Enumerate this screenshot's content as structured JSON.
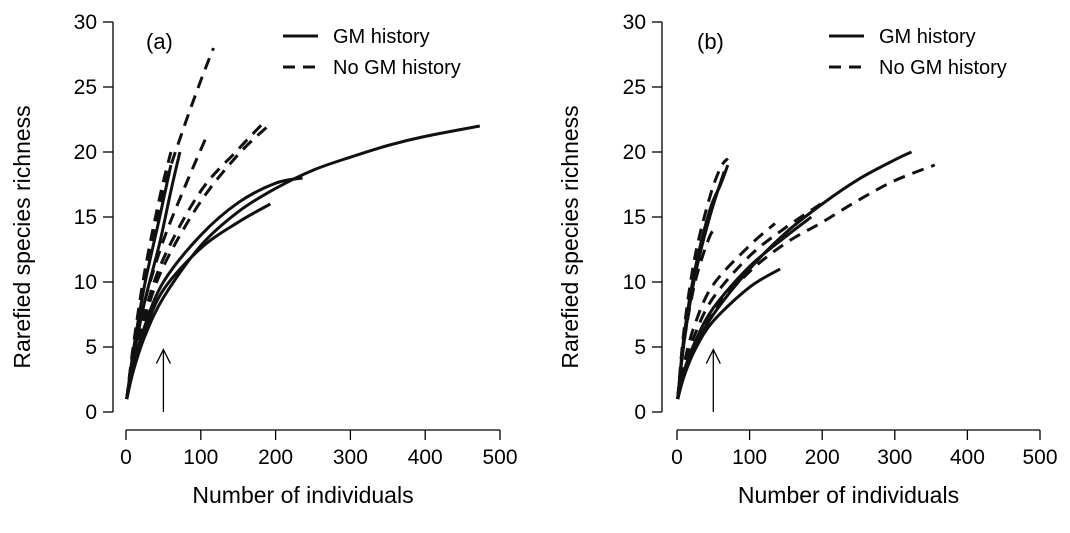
{
  "chart_data": [
    {
      "type": "line",
      "panel_label": "(a)",
      "xlabel": "Number of individuals",
      "ylabel": "Rarefied species richness",
      "xlim": [
        0,
        500
      ],
      "ylim": [
        0,
        30
      ],
      "xticks": [
        0,
        100,
        200,
        300,
        400,
        500
      ],
      "yticks": [
        0,
        5,
        10,
        15,
        20,
        25,
        30
      ],
      "legend": {
        "position": "top-right",
        "entries": [
          {
            "label": "GM history",
            "style": "solid"
          },
          {
            "label": "No GM history",
            "style": "dashed"
          }
        ]
      },
      "arrow_at_x": 50,
      "series": [
        {
          "group": "GM history",
          "style": "solid",
          "points": [
            [
              1,
              1
            ],
            [
              10,
              3.2
            ],
            [
              25,
              5.8
            ],
            [
              50,
              8.8
            ],
            [
              100,
              12.8
            ],
            [
              150,
              15.4
            ],
            [
              200,
              17.2
            ],
            [
              250,
              18.6
            ],
            [
              300,
              19.6
            ],
            [
              350,
              20.5
            ],
            [
              400,
              21.2
            ],
            [
              473,
              22
            ]
          ]
        },
        {
          "group": "GM history",
          "style": "solid",
          "points": [
            [
              1,
              1
            ],
            [
              10,
              3.6
            ],
            [
              25,
              6.6
            ],
            [
              50,
              10
            ],
            [
              100,
              13.6
            ],
            [
              150,
              16.1
            ],
            [
              200,
              17.6
            ],
            [
              236,
              18
            ]
          ]
        },
        {
          "group": "GM history",
          "style": "solid",
          "points": [
            [
              1,
              1
            ],
            [
              10,
              3.4
            ],
            [
              25,
              6.2
            ],
            [
              50,
              9.4
            ],
            [
              100,
              12.6
            ],
            [
              150,
              14.6
            ],
            [
              193,
              16
            ]
          ]
        },
        {
          "group": "GM history",
          "style": "solid",
          "points": [
            [
              1,
              1
            ],
            [
              10,
              4.2
            ],
            [
              25,
              8.5
            ],
            [
              45,
              13
            ],
            [
              60,
              17
            ],
            [
              72,
              20
            ]
          ]
        },
        {
          "group": "GM history",
          "style": "solid",
          "points": [
            [
              1,
              1
            ],
            [
              10,
              4.8
            ],
            [
              25,
              9.8
            ],
            [
              45,
              15
            ],
            [
              60,
              19
            ]
          ]
        },
        {
          "group": "No GM history",
          "style": "dashed",
          "points": [
            [
              1,
              1
            ],
            [
              10,
              5
            ],
            [
              25,
              10.5
            ],
            [
              50,
              17
            ],
            [
              75,
              21.5
            ],
            [
              100,
              25.5
            ],
            [
              117,
              28
            ]
          ]
        },
        {
          "group": "No GM history",
          "style": "dashed",
          "points": [
            [
              1,
              1
            ],
            [
              10,
              5.2
            ],
            [
              25,
              10.8
            ],
            [
              45,
              16.5
            ],
            [
              60,
              20
            ]
          ]
        },
        {
          "group": "No GM history",
          "style": "dashed",
          "points": [
            [
              1,
              1
            ],
            [
              10,
              4.5
            ],
            [
              25,
              8.5
            ],
            [
              50,
              13.2
            ],
            [
              80,
              17.5
            ],
            [
              110,
              21.5
            ]
          ]
        },
        {
          "group": "No GM history",
          "style": "dashed",
          "points": [
            [
              1,
              1
            ],
            [
              10,
              4.0
            ],
            [
              25,
              7.6
            ],
            [
              50,
              11.8
            ],
            [
              100,
              17
            ],
            [
              150,
              20.2
            ],
            [
              183,
              22.2
            ]
          ]
        },
        {
          "group": "No GM history",
          "style": "dashed",
          "points": [
            [
              1,
              1
            ],
            [
              10,
              3.8
            ],
            [
              25,
              7.2
            ],
            [
              50,
              11.2
            ],
            [
              100,
              16.2
            ],
            [
              150,
              19.8
            ],
            [
              190,
              22
            ]
          ]
        }
      ]
    },
    {
      "type": "line",
      "panel_label": "(b)",
      "xlabel": "Number of individuals",
      "ylabel": "Rarefied species richness",
      "xlim": [
        0,
        500
      ],
      "ylim": [
        0,
        30
      ],
      "xticks": [
        0,
        100,
        200,
        300,
        400,
        500
      ],
      "yticks": [
        0,
        5,
        10,
        15,
        20,
        25,
        30
      ],
      "legend": {
        "position": "top-right",
        "entries": [
          {
            "label": "GM history",
            "style": "solid"
          },
          {
            "label": "No GM history",
            "style": "dashed"
          }
        ]
      },
      "arrow_at_x": 50,
      "series": [
        {
          "group": "GM history",
          "style": "solid",
          "points": [
            [
              1,
              1
            ],
            [
              10,
              3
            ],
            [
              25,
              5
            ],
            [
              50,
              7.5
            ],
            [
              100,
              11
            ],
            [
              150,
              13.8
            ],
            [
              200,
              16
            ],
            [
              250,
              17.9
            ],
            [
              300,
              19.4
            ],
            [
              323,
              20
            ]
          ]
        },
        {
          "group": "GM history",
          "style": "solid",
          "points": [
            [
              1,
              1
            ],
            [
              10,
              2.8
            ],
            [
              25,
              4.8
            ],
            [
              50,
              7
            ],
            [
              100,
              9.6
            ],
            [
              142,
              11
            ]
          ]
        },
        {
          "group": "GM history",
          "style": "solid",
          "points": [
            [
              1,
              1
            ],
            [
              10,
              3.2
            ],
            [
              25,
              5.4
            ],
            [
              50,
              8
            ],
            [
              100,
              11.2
            ],
            [
              150,
              13.5
            ],
            [
              185,
              15
            ]
          ]
        },
        {
          "group": "GM history",
          "style": "solid",
          "points": [
            [
              1,
              1
            ],
            [
              10,
              6
            ],
            [
              25,
              11
            ],
            [
              45,
              15.5
            ],
            [
              60,
              17.5
            ],
            [
              70,
              19
            ]
          ]
        },
        {
          "group": "GM history",
          "style": "solid",
          "points": [
            [
              1,
              1
            ],
            [
              10,
              5.5
            ],
            [
              25,
              10.5
            ],
            [
              45,
              15
            ],
            [
              65,
              18.5
            ]
          ]
        },
        {
          "group": "No GM history",
          "style": "dashed",
          "points": [
            [
              1,
              1
            ],
            [
              10,
              3
            ],
            [
              25,
              5.2
            ],
            [
              50,
              7.8
            ],
            [
              100,
              10.8
            ],
            [
              150,
              13
            ],
            [
              200,
              14.6
            ],
            [
              250,
              16.3
            ],
            [
              300,
              17.8
            ],
            [
              355,
              19
            ]
          ]
        },
        {
          "group": "No GM history",
          "style": "dashed",
          "points": [
            [
              1,
              1
            ],
            [
              10,
              3.8
            ],
            [
              25,
              6.8
            ],
            [
              50,
              9.8
            ],
            [
              100,
              12.8
            ],
            [
              135,
              14.5
            ]
          ]
        },
        {
          "group": "No GM history",
          "style": "dashed",
          "points": [
            [
              1,
              1
            ],
            [
              10,
              3.4
            ],
            [
              25,
              6
            ],
            [
              50,
              8.8
            ],
            [
              100,
              12
            ],
            [
              150,
              14.2
            ],
            [
              198,
              16
            ]
          ]
        },
        {
          "group": "No GM history",
          "style": "dashed",
          "points": [
            [
              1,
              1
            ],
            [
              10,
              6.5
            ],
            [
              25,
              12
            ],
            [
              45,
              16.5
            ],
            [
              60,
              18.8
            ],
            [
              70,
              19.5
            ]
          ]
        },
        {
          "group": "No GM history",
          "style": "dashed",
          "points": [
            [
              1,
              1
            ],
            [
              10,
              5.5
            ],
            [
              25,
              10
            ],
            [
              45,
              13.5
            ],
            [
              55,
              14
            ]
          ]
        }
      ]
    }
  ]
}
